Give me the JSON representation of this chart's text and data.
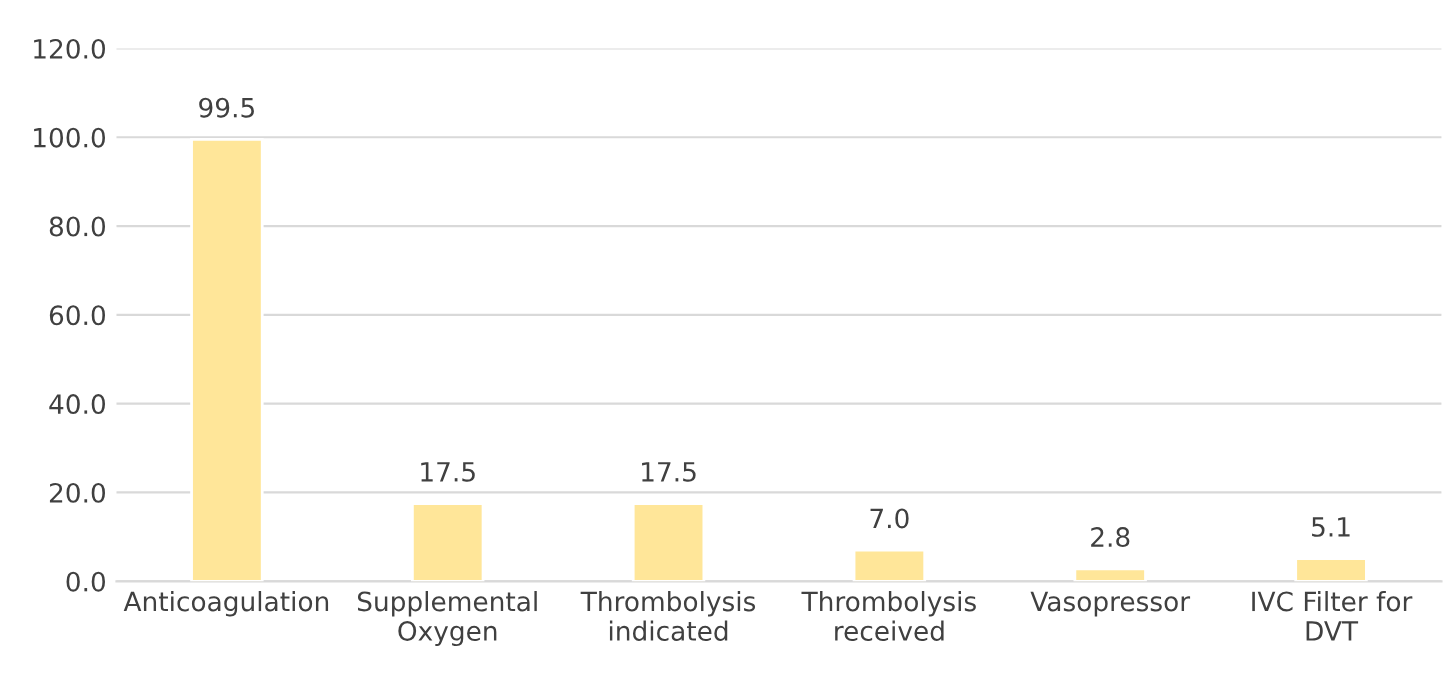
{
  "chart_data": {
    "type": "bar",
    "categories": [
      "Anticoagulation",
      "Supplemental\nOxygen",
      "Thrombolysis\nindicated",
      "Thrombolysis\nreceived",
      "Vasopressor",
      "IVC Filter for\nDVT"
    ],
    "values": [
      99.5,
      17.5,
      17.5,
      7.0,
      2.8,
      5.1
    ],
    "color": "#ffe699",
    "ylim": [
      0,
      120
    ],
    "yticks": [
      {
        "value": 0,
        "label": "0.0"
      },
      {
        "value": 20,
        "label": "20.0"
      },
      {
        "value": 40,
        "label": "40.0"
      },
      {
        "value": 60,
        "label": "60.0"
      },
      {
        "value": 80,
        "label": "80.0"
      },
      {
        "value": 100,
        "label": "100.0"
      },
      {
        "value": 120,
        "label": "120.0"
      }
    ],
    "grid": "y",
    "value_labels": [
      "99.5",
      "17.5",
      "17.5",
      "7.0",
      "2.8",
      "5.1"
    ]
  }
}
